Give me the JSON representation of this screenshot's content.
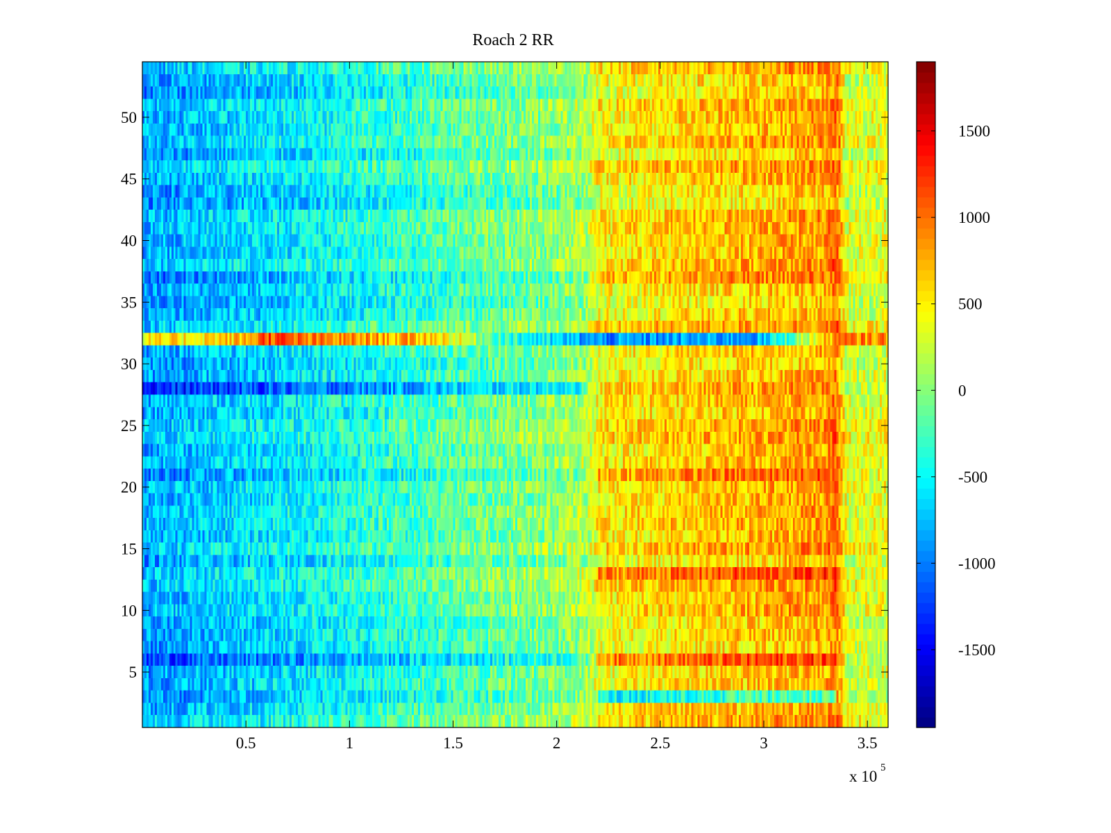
{
  "chart_data": {
    "type": "heatmap",
    "title": "Roach 2 RR",
    "xlabel": "",
    "ylabel": "",
    "x_exponent_label": {
      "base": "x 10",
      "exponent": "5"
    },
    "xlim": [
      0,
      360000
    ],
    "ylim": [
      0.5,
      54.5
    ],
    "rows": 54,
    "x_ticks": [
      50000,
      100000,
      150000,
      200000,
      250000,
      300000,
      350000
    ],
    "x_tick_labels": [
      "0.5",
      "1",
      "1.5",
      "2",
      "2.5",
      "3",
      "3.5"
    ],
    "y_ticks": [
      5,
      10,
      15,
      20,
      25,
      30,
      35,
      40,
      45,
      50
    ],
    "y_tick_labels": [
      "5",
      "10",
      "15",
      "20",
      "25",
      "30",
      "35",
      "40",
      "45",
      "50"
    ],
    "colormap": "jet",
    "clim": [
      -1950,
      1900
    ],
    "colorbar_ticks": [
      1500,
      1000,
      500,
      0,
      -500,
      -1000,
      -1500
    ],
    "colorbar_tick_labels": [
      "1500",
      "1000",
      "500",
      "0",
      "-500",
      "-1000",
      "-1500"
    ],
    "grid": false,
    "trend_description_values": {
      "column_profile_x": [
        0,
        50000,
        100000,
        150000,
        200000,
        215000,
        220000,
        260000,
        300000,
        330000,
        335000,
        340000,
        360000
      ],
      "column_profile_value": [
        -850,
        -650,
        -450,
        -200,
        0,
        150,
        450,
        600,
        700,
        800,
        1000,
        300,
        350
      ]
    },
    "notable_rows": [
      {
        "row": 32,
        "description": "early high band, later low band",
        "x": [
          0,
          50000,
          60000,
          80000,
          140000,
          180000,
          220000,
          300000,
          335000
        ],
        "value": [
          400,
          700,
          1200,
          900,
          700,
          -400,
          -950,
          -800,
          900
        ]
      },
      {
        "row": 28,
        "row_offset": -1050,
        "row_after": 600
      },
      {
        "row": 21,
        "row_offset": -850,
        "row_after": 800
      },
      {
        "row": 13,
        "row_offset": -600,
        "row_after": 900
      },
      {
        "row": 6,
        "row_offset": -1000,
        "row_after": 900
      },
      {
        "row": 37,
        "row_offset": -950,
        "row_after": 700
      },
      {
        "row": 3,
        "row_after": -500
      }
    ]
  }
}
